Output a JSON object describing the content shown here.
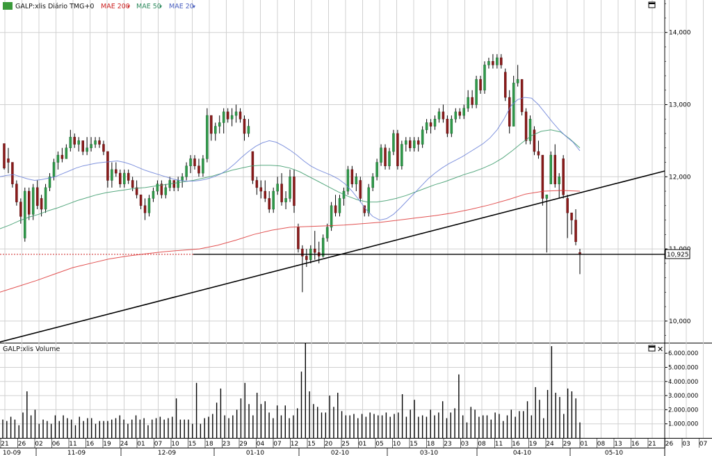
{
  "price_panel": {
    "symbol_label": "GALP:xlis Diário TMG+0",
    "legend": [
      {
        "label": "MAE 200",
        "color": "#cc2222"
      },
      {
        "label": "MAE 50",
        "color": "#2e8a5e"
      },
      {
        "label": "MAE 20",
        "color": "#4a5fc0"
      }
    ],
    "maximize_icon": "window-maximize-icon",
    "last_price_label": "10,925"
  },
  "volume_panel": {
    "label": "GALP:xlis Volume",
    "maximize_icon": "window-maximize-icon",
    "close_icon": "close-icon"
  },
  "x_axis": {
    "days": [
      "21",
      "26",
      "02",
      "06",
      "11",
      "16",
      "19",
      "24",
      "01",
      "07",
      "10",
      "15",
      "18",
      "23",
      "29",
      "04",
      "07",
      "12",
      "15",
      "20",
      "25",
      "01",
      "05",
      "10",
      "15",
      "18",
      "23",
      "03",
      "08",
      "11",
      "16",
      "19",
      "24",
      "29",
      "01",
      "08",
      "13",
      "16",
      "21",
      "26",
      "03",
      "07"
    ],
    "months": [
      "10-09",
      "11-09",
      "12-09",
      "01-10",
      "02-10",
      "03-10",
      "04-10",
      "05-10"
    ]
  },
  "chart_data": [
    {
      "type": "candlestick",
      "title": "GALP:xlis Diário TMG+0",
      "ylim": [
        9.7,
        14.45
      ],
      "y_ticks": [
        "14,000",
        "13,000",
        "12,000",
        "11,000",
        "10,000"
      ],
      "reference_level": 10.925,
      "ohlc": [
        [
          12.46,
          12.46,
          12.1,
          12.12
        ],
        [
          12.25,
          12.4,
          12.05,
          12.2
        ],
        [
          12.2,
          12.2,
          11.85,
          11.9
        ],
        [
          11.9,
          11.95,
          11.6,
          11.65
        ],
        [
          11.65,
          11.7,
          11.35,
          11.45
        ],
        [
          11.15,
          11.85,
          11.1,
          11.8
        ],
        [
          11.8,
          11.85,
          11.4,
          11.48
        ],
        [
          11.48,
          11.9,
          11.4,
          11.85
        ],
        [
          11.85,
          11.95,
          11.55,
          11.6
        ],
        [
          11.7,
          11.75,
          11.45,
          11.55
        ],
        [
          11.55,
          11.9,
          11.5,
          11.85
        ],
        [
          11.85,
          12.05,
          11.8,
          12.0
        ],
        [
          12.0,
          12.25,
          11.95,
          12.2
        ],
        [
          12.2,
          12.35,
          12.1,
          12.3
        ],
        [
          12.3,
          12.4,
          12.2,
          12.25
        ],
        [
          12.25,
          12.45,
          12.25,
          12.4
        ],
        [
          12.4,
          12.65,
          12.35,
          12.55
        ],
        [
          12.55,
          12.6,
          12.4,
          12.45
        ],
        [
          12.45,
          12.55,
          12.35,
          12.5
        ],
        [
          12.5,
          12.5,
          12.3,
          12.35
        ],
        [
          12.35,
          12.55,
          12.3,
          12.4
        ],
        [
          12.4,
          12.55,
          12.35,
          12.45
        ],
        [
          12.45,
          12.55,
          12.4,
          12.5
        ],
        [
          12.5,
          12.55,
          12.4,
          12.45
        ],
        [
          12.45,
          12.5,
          12.3,
          12.35
        ],
        [
          12.35,
          12.35,
          11.85,
          11.95
        ],
        [
          11.95,
          12.2,
          11.85,
          12.1
        ],
        [
          12.1,
          12.2,
          12.0,
          12.05
        ],
        [
          12.05,
          12.1,
          11.85,
          11.9
        ],
        [
          11.9,
          12.1,
          11.85,
          12.05
        ],
        [
          12.05,
          12.1,
          11.9,
          11.95
        ],
        [
          11.95,
          12.0,
          11.8,
          11.85
        ],
        [
          11.85,
          11.95,
          11.7,
          11.75
        ],
        [
          11.75,
          11.75,
          11.55,
          11.6
        ],
        [
          11.6,
          11.7,
          11.4,
          11.5
        ],
        [
          11.5,
          11.75,
          11.45,
          11.7
        ],
        [
          11.7,
          11.85,
          11.65,
          11.8
        ],
        [
          11.8,
          11.95,
          11.75,
          11.9
        ],
        [
          11.9,
          11.95,
          11.7,
          11.75
        ],
        [
          11.75,
          11.9,
          11.7,
          11.85
        ],
        [
          11.85,
          12.0,
          11.8,
          11.95
        ],
        [
          11.95,
          11.95,
          11.8,
          11.85
        ],
        [
          11.85,
          12.0,
          11.8,
          11.95
        ],
        [
          11.95,
          12.05,
          11.85,
          12.0
        ],
        [
          12.0,
          12.2,
          11.95,
          12.15
        ],
        [
          12.15,
          12.3,
          12.05,
          12.25
        ],
        [
          12.25,
          12.3,
          12.1,
          12.15
        ],
        [
          12.15,
          12.25,
          12.0,
          12.05
        ],
        [
          12.05,
          12.3,
          12.0,
          12.25
        ],
        [
          12.25,
          12.95,
          12.2,
          12.85
        ],
        [
          12.85,
          12.85,
          12.5,
          12.6
        ],
        [
          12.6,
          12.75,
          12.5,
          12.7
        ],
        [
          12.7,
          12.85,
          12.6,
          12.75
        ],
        [
          12.75,
          12.95,
          12.6,
          12.9
        ],
        [
          12.9,
          12.95,
          12.75,
          12.8
        ],
        [
          12.8,
          12.95,
          12.7,
          12.85
        ],
        [
          12.85,
          13.0,
          12.75,
          12.9
        ],
        [
          12.9,
          12.95,
          12.75,
          12.8
        ],
        [
          12.8,
          12.85,
          12.5,
          12.6
        ],
        [
          12.6,
          12.8,
          12.55,
          12.7
        ],
        [
          12.35,
          12.35,
          11.9,
          11.95
        ],
        [
          11.95,
          12.0,
          11.75,
          11.85
        ],
        [
          11.85,
          11.95,
          11.7,
          11.8
        ],
        [
          11.8,
          11.95,
          11.65,
          11.7
        ],
        [
          11.7,
          11.8,
          11.5,
          11.55
        ],
        [
          11.55,
          11.85,
          11.5,
          11.8
        ],
        [
          11.8,
          12.0,
          11.75,
          11.9
        ],
        [
          11.9,
          12.05,
          11.6,
          11.65
        ],
        [
          11.65,
          11.8,
          11.55,
          11.7
        ],
        [
          11.7,
          12.1,
          11.65,
          12.0
        ],
        [
          12.0,
          12.1,
          11.5,
          11.6
        ],
        [
          11.3,
          11.35,
          10.95,
          11.0
        ],
        [
          11.0,
          11.05,
          10.4,
          10.9
        ],
        [
          10.9,
          11.0,
          10.75,
          10.85
        ],
        [
          10.85,
          11.05,
          10.8,
          11.0
        ],
        [
          11.0,
          11.25,
          10.85,
          10.95
        ],
        [
          10.95,
          11.1,
          10.8,
          10.9
        ],
        [
          10.9,
          11.2,
          10.88,
          11.15
        ],
        [
          11.15,
          11.35,
          11.1,
          11.3
        ],
        [
          11.3,
          11.65,
          11.25,
          11.6
        ],
        [
          11.6,
          11.75,
          11.45,
          11.5
        ],
        [
          11.5,
          11.75,
          11.45,
          11.7
        ],
        [
          11.7,
          11.85,
          11.6,
          11.8
        ],
        [
          11.8,
          12.15,
          11.75,
          12.1
        ],
        [
          12.1,
          12.15,
          11.85,
          11.9
        ],
        [
          11.9,
          12.05,
          11.8,
          12.0
        ],
        [
          11.95,
          12.0,
          11.65,
          11.7
        ],
        [
          11.6,
          11.6,
          11.45,
          11.5
        ],
        [
          11.5,
          11.9,
          11.45,
          11.85
        ],
        [
          11.85,
          12.05,
          11.8,
          12.0
        ],
        [
          12.0,
          12.25,
          11.95,
          12.2
        ],
        [
          12.2,
          12.45,
          12.15,
          12.4
        ],
        [
          12.4,
          12.45,
          12.1,
          12.15
        ],
        [
          12.15,
          12.4,
          12.1,
          12.35
        ],
        [
          12.35,
          12.65,
          12.3,
          12.6
        ],
        [
          12.6,
          12.65,
          12.1,
          12.15
        ],
        [
          12.15,
          12.5,
          12.1,
          12.45
        ],
        [
          12.45,
          12.55,
          12.35,
          12.5
        ],
        [
          12.5,
          12.55,
          12.35,
          12.4
        ],
        [
          12.4,
          12.55,
          12.35,
          12.5
        ],
        [
          12.5,
          12.55,
          12.35,
          12.45
        ],
        [
          12.45,
          12.7,
          12.4,
          12.65
        ],
        [
          12.65,
          12.8,
          12.6,
          12.75
        ],
        [
          12.75,
          12.8,
          12.6,
          12.7
        ],
        [
          12.7,
          12.85,
          12.65,
          12.8
        ],
        [
          12.8,
          12.95,
          12.75,
          12.9
        ],
        [
          12.9,
          13.0,
          12.75,
          12.8
        ],
        [
          12.8,
          12.85,
          12.55,
          12.6
        ],
        [
          12.6,
          12.85,
          12.55,
          12.8
        ],
        [
          12.8,
          12.95,
          12.75,
          12.9
        ],
        [
          12.9,
          12.95,
          12.8,
          12.85
        ],
        [
          12.85,
          13.0,
          12.8,
          12.95
        ],
        [
          12.95,
          13.2,
          12.9,
          13.1
        ],
        [
          13.1,
          13.2,
          12.95,
          13.0
        ],
        [
          13.0,
          13.4,
          12.95,
          13.35
        ],
        [
          13.35,
          13.4,
          13.15,
          13.2
        ],
        [
          13.2,
          13.6,
          13.15,
          13.55
        ],
        [
          13.55,
          13.65,
          13.5,
          13.6
        ],
        [
          13.6,
          13.7,
          13.5,
          13.55
        ],
        [
          13.55,
          13.7,
          13.5,
          13.65
        ],
        [
          13.65,
          13.7,
          13.5,
          13.55
        ],
        [
          13.45,
          13.5,
          13.05,
          13.1
        ],
        [
          13.1,
          13.2,
          12.6,
          12.7
        ],
        [
          12.7,
          13.4,
          12.7,
          13.3
        ],
        [
          13.3,
          13.55,
          13.25,
          13.35
        ],
        [
          13.35,
          13.35,
          12.85,
          12.9
        ],
        [
          12.9,
          12.95,
          12.45,
          12.5
        ],
        [
          12.5,
          12.85,
          12.45,
          12.8
        ],
        [
          12.65,
          12.7,
          12.3,
          12.35
        ],
        [
          12.35,
          12.5,
          12.25,
          12.3
        ],
        [
          12.3,
          12.3,
          11.6,
          11.7
        ],
        [
          11.7,
          11.75,
          10.95,
          11.75
        ],
        [
          11.9,
          12.35,
          11.9,
          12.3
        ],
        [
          12.3,
          12.45,
          11.85,
          11.9
        ],
        [
          11.9,
          12.05,
          11.7,
          12.0
        ],
        [
          12.25,
          12.3,
          11.7,
          11.75
        ],
        [
          11.7,
          11.75,
          11.15,
          11.5
        ],
        [
          11.5,
          11.5,
          11.2,
          11.4
        ],
        [
          11.4,
          11.55,
          11.05,
          11.1
        ],
        [
          10.95,
          11.0,
          10.65,
          10.925
        ]
      ]
    },
    {
      "type": "line",
      "title": "MAE 20",
      "series": [
        {
          "name": "MAE 20",
          "y": [
            12.0,
            12.02,
            12.03,
            12.0,
            11.97,
            11.95,
            11.96,
            11.98,
            12.0,
            12.04,
            12.08,
            12.12,
            12.15,
            12.17,
            12.19,
            12.2,
            12.21,
            12.22,
            12.2,
            12.17,
            12.13,
            12.09,
            12.06,
            12.03,
            12.0,
            11.97,
            11.95,
            11.94,
            11.94,
            11.95,
            11.97,
            12.0,
            12.04,
            12.1,
            12.18,
            12.27,
            12.35,
            12.42,
            12.47,
            12.5,
            12.48,
            12.43,
            12.37,
            12.3,
            12.22,
            12.15,
            12.1,
            12.06,
            12.02,
            11.97,
            11.9,
            11.8,
            11.68,
            11.55,
            11.45,
            11.4,
            11.42,
            11.48,
            11.57,
            11.67,
            11.77,
            11.87,
            11.97,
            12.05,
            12.12,
            12.18,
            12.23,
            12.28,
            12.34,
            12.4,
            12.46,
            12.54,
            12.65,
            12.8,
            12.98,
            13.07,
            13.1,
            13.09,
            13.0,
            12.88,
            12.76,
            12.65,
            12.56,
            12.48,
            12.36
          ]
        }
      ]
    },
    {
      "type": "line",
      "title": "MAE 50",
      "series": [
        {
          "name": "MAE 50",
          "y": [
            11.28,
            11.33,
            11.39,
            11.44,
            11.48,
            11.53,
            11.57,
            11.62,
            11.67,
            11.71,
            11.75,
            11.78,
            11.8,
            11.82,
            11.84,
            11.85,
            11.87,
            11.89,
            11.91,
            11.93,
            11.95,
            11.98,
            12.01,
            12.05,
            12.09,
            12.12,
            12.15,
            12.16,
            12.16,
            12.15,
            12.12,
            12.07,
            12.0,
            11.93,
            11.86,
            11.79,
            11.73,
            11.68,
            11.65,
            11.65,
            11.67,
            11.7,
            11.74,
            11.79,
            11.84,
            11.89,
            11.93,
            11.98,
            12.03,
            12.07,
            12.12,
            12.18,
            12.26,
            12.36,
            12.47,
            12.57,
            12.63,
            12.65,
            12.62,
            12.52,
            12.4
          ]
        }
      ]
    },
    {
      "type": "line",
      "title": "MAE 200",
      "series": [
        {
          "name": "MAE 200",
          "y": [
            10.4,
            10.48,
            10.56,
            10.65,
            10.74,
            10.8,
            10.86,
            10.9,
            10.93,
            10.96,
            10.98,
            11.0,
            11.05,
            11.12,
            11.2,
            11.26,
            11.3,
            11.31,
            11.32,
            11.33,
            11.35,
            11.37,
            11.4,
            11.43,
            11.46,
            11.5,
            11.55,
            11.61,
            11.68,
            11.76,
            11.8,
            11.81,
            11.8
          ]
        }
      ]
    },
    {
      "type": "bar",
      "title": "GALP:xlis Volume",
      "y_ticks": [
        "6.000.000",
        "5.000.000",
        "4.000.000",
        "3.000.000",
        "2.000.000",
        "1.000.000"
      ],
      "ylim": [
        0,
        6600000
      ],
      "values": [
        1.3,
        1.2,
        1.5,
        1.3,
        0.9,
        1.8,
        3.3,
        1.6,
        2.0,
        1.0,
        1.3,
        1.2,
        1.0,
        1.6,
        1.2,
        1.6,
        1.4,
        1.3,
        0.9,
        1.5,
        1.2,
        1.4,
        1.4,
        1.0,
        1.2,
        1.2,
        1.2,
        1.3,
        1.4,
        1.6,
        1.3,
        1.0,
        1.3,
        1.6,
        1.3,
        1.4,
        0.9,
        1.3,
        1.4,
        1.5,
        1.3,
        1.4,
        1.5,
        2.8,
        1.3,
        1.3,
        1.3,
        1.0,
        3.9,
        1.0,
        1.4,
        1.5,
        1.7,
        2.5,
        3.5,
        1.6,
        1.4,
        1.6,
        2.0,
        2.8,
        3.9,
        2.4,
        1.6,
        3.2,
        2.4,
        2.6,
        1.8,
        1.4,
        2.3,
        1.6,
        2.3,
        1.4,
        1.6,
        2.1,
        4.7,
        6.7,
        3.3,
        2.4,
        2.2,
        1.8,
        1.8,
        3.0,
        2.2,
        3.2,
        1.9,
        1.6,
        1.6,
        1.7,
        1.4,
        1.7,
        1.5,
        1.8,
        1.7,
        1.6,
        1.6,
        1.8,
        1.5,
        1.7,
        1.8,
        3.1,
        1.5,
        2.0,
        2.7,
        1.5,
        1.6,
        1.5,
        2.0,
        1.6,
        1.8,
        2.6,
        1.4,
        1.8,
        2.1,
        4.5,
        1.6,
        1.1,
        2.2,
        2.0,
        1.5,
        1.6,
        1.6,
        1.3,
        1.8,
        1.7,
        1.2,
        1.6,
        2.0,
        1.5,
        1.9,
        1.9,
        2.6,
        1.6,
        3.6,
        2.7,
        1.4,
        3.4,
        6.5,
        3.2,
        2.9,
        1.7,
        3.5,
        3.3,
        2.8,
        1.1
      ]
    }
  ]
}
